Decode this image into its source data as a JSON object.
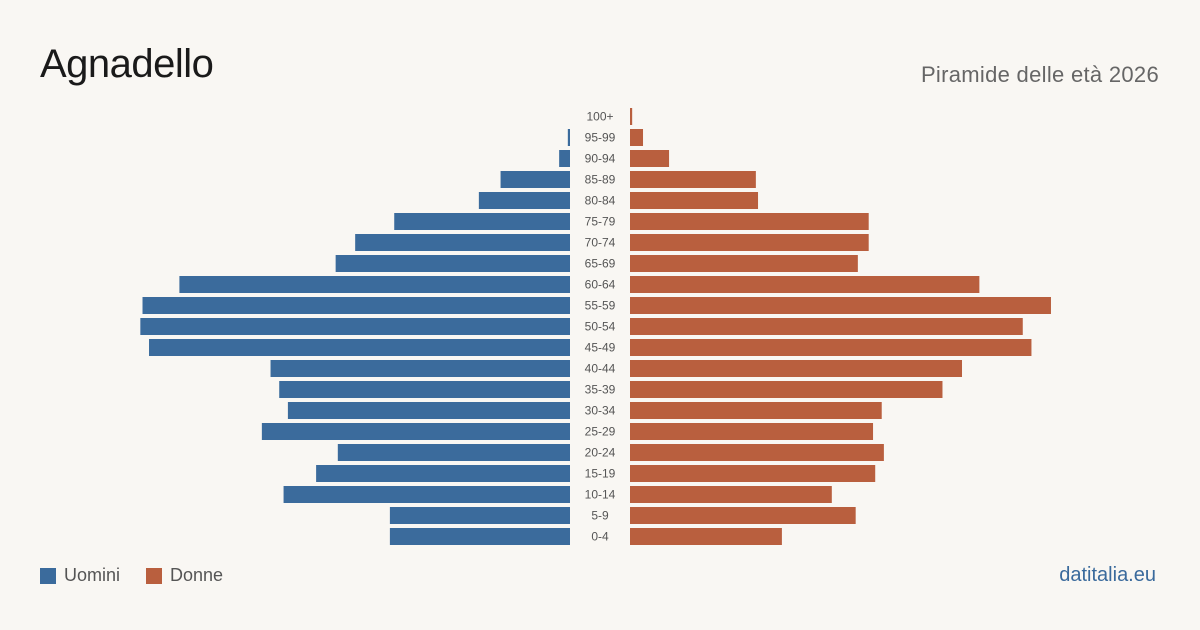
{
  "header": {
    "title": "Agnadello",
    "subtitle": "Piramide delle età 2026"
  },
  "legend": {
    "men_label": "Uomini",
    "women_label": "Donne"
  },
  "footer": {
    "brand": "datitalia.eu"
  },
  "colors": {
    "men": "#3b6b9c",
    "women": "#b95f3e",
    "background": "#f9f7f3"
  },
  "chart_data": {
    "type": "bar",
    "orientation": "horizontal-mirrored",
    "title": "Piramide delle età 2026",
    "categories": [
      "100+",
      "95-99",
      "90-94",
      "85-89",
      "80-84",
      "75-79",
      "70-74",
      "65-69",
      "60-64",
      "55-59",
      "50-54",
      "45-49",
      "40-44",
      "35-39",
      "30-34",
      "25-29",
      "20-24",
      "15-19",
      "10-14",
      "5-9",
      "0-4"
    ],
    "series": [
      {
        "name": "Uomini",
        "values": [
          0,
          1,
          5,
          32,
          42,
          81,
          99,
          108,
          180,
          197,
          198,
          194,
          138,
          134,
          130,
          142,
          107,
          117,
          132,
          83,
          83
        ]
      },
      {
        "name": "Donne",
        "values": [
          1,
          6,
          18,
          58,
          59,
          110,
          110,
          105,
          161,
          194,
          181,
          185,
          153,
          144,
          116,
          112,
          117,
          113,
          93,
          104,
          70
        ]
      }
    ],
    "xlim": [
      0,
      210
    ],
    "grid": false,
    "legend_position": "bottom-left"
  }
}
